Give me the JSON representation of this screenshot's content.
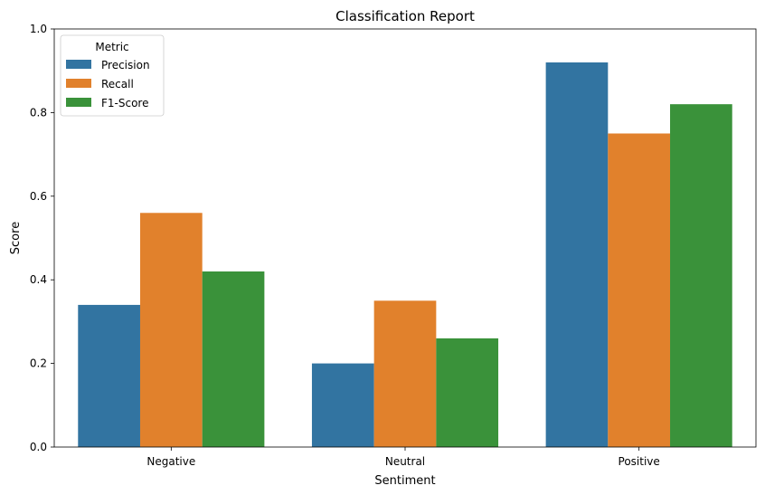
{
  "chart_data": {
    "type": "bar",
    "title": "Classification Report",
    "xlabel": "Sentiment",
    "ylabel": "Score",
    "categories": [
      "Negative",
      "Neutral",
      "Positive"
    ],
    "ylim": [
      0,
      1.0
    ],
    "yticks": [
      "0.0",
      "0.2",
      "0.4",
      "0.6",
      "0.8",
      "1.0"
    ],
    "grid": false,
    "legend": {
      "title": "Metric",
      "placement": "top-left"
    },
    "series": [
      {
        "name": "Precision",
        "color": "#3274a1",
        "values": [
          0.34,
          0.2,
          0.92
        ]
      },
      {
        "name": "Recall",
        "color": "#e1812c",
        "values": [
          0.56,
          0.35,
          0.75
        ]
      },
      {
        "name": "F1-Score",
        "color": "#3a923a",
        "values": [
          0.42,
          0.26,
          0.82
        ]
      }
    ]
  }
}
